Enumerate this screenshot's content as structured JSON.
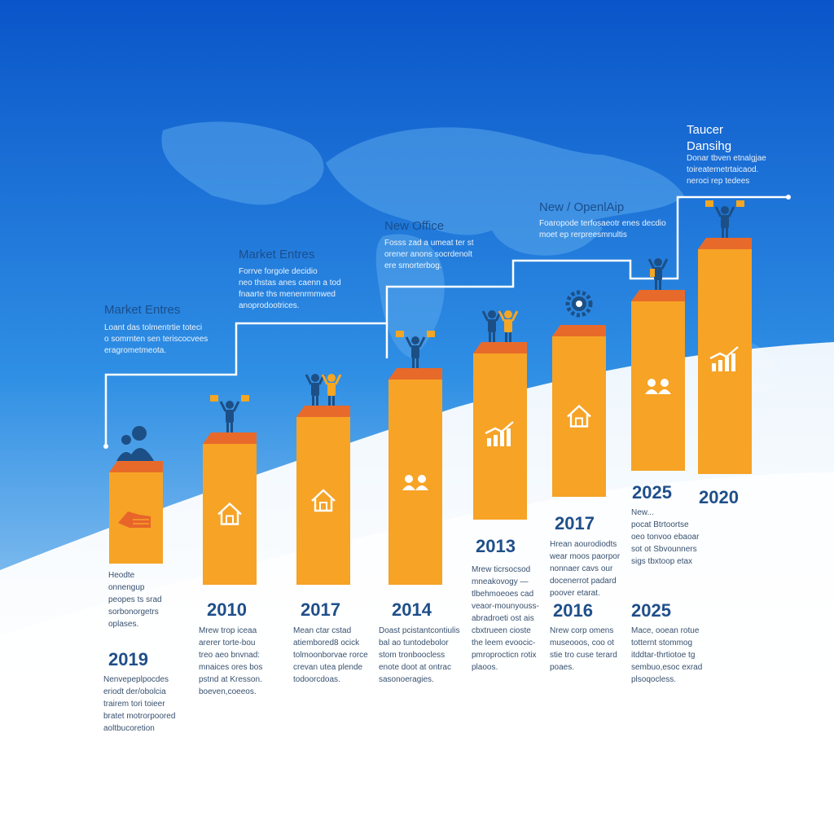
{
  "colors": {
    "sky_top": "#0a55c9",
    "sky_mid": "#2f8fe4",
    "map": "#5aa8ec",
    "ground": "#f4f8fc",
    "pillar_front": "#f6a326",
    "pillar_top": "#e86a2b",
    "figure_dark": "#1c4f86",
    "figure_light": "#f5a623",
    "title_text": "#1a4e8c"
  },
  "callouts": [
    {
      "title": "Market Entres",
      "text": "Loant das tolmentrtie toteci\no somrnten sen teriscocvees\neragrometmeota."
    },
    {
      "title": "Market Entres",
      "text": "Forrve forgole decidio\nneo thstas anes caenn a tod\nfnaarte ths menenrmmwed\nanoprodootrices."
    },
    {
      "title": "New Office",
      "text": "Fosss zad a umeat ter st\norener anons socrdenolt\nere smorterbog."
    },
    {
      "title": "New / OpenlAip",
      "text": "Foaropode terfosaeotr enes decdio\nmoet ep rerpreesmnultis"
    },
    {
      "title": "Taucer\nDansihg",
      "text": "Donar tbven etnalgjae\ntoireatemetrtaicaod.\nneroci rep tedees"
    }
  ],
  "pillars": [
    {
      "icon": "handshake-icon",
      "figure": "group-figure",
      "label_year": "2019",
      "label_text": "Heodte\nonnengup\npeopes ts srad\nsorbonorgetrs\noplases.",
      "year": "2019",
      "desc": "Nenvepeplpocdes\neriodt der/obolcia\ntrairem tori toieer\nbratet motrorpoored\naoltbucoretion"
    },
    {
      "icon": "house-icon",
      "figure": "person-flag-figure",
      "year": "2010",
      "desc": "Mrew trop iceaa\narerer torte-bou\ntreo aeo bnvnad:\nmnaices ores bos\npstnd at Kresson.\nboeven,coeeos."
    },
    {
      "icon": "house-icon",
      "figure": "two-people-figure",
      "year": "2017",
      "desc": "Mean ctar cstad\natiembored8 ocick\ntolmoonborvae rorce\ncrevan utea plende\ntodoorcdoas."
    },
    {
      "icon": "people-icon",
      "figure": "person-flag-figure",
      "year": "2014",
      "desc": "Doast pcistantcontiulis\nbal ao tuntodebolor\nstom tronboocless\nenote doot at ontrac\nsasonoeragies."
    },
    {
      "icon": "growth-chart-icon",
      "figure": "two-people-figure",
      "year": "2013",
      "desc": "Mrew ticrsocsod\nmneakovogy —\ntlbehmoeoes cad\nveaor-mounyouss-\nabradroeti ost ais\ncbxtrueen cioste\nthe leem evoocic-\npmroprocticn rotix\nplaoos."
    },
    {
      "icon": "house-icon",
      "figure": "gear-figure",
      "year": "2017",
      "year_2": "2016",
      "desc_top": "Hrean aourodiodts\nwear moos paorpor\nnonnaer cavs our\ndocenerrot padard\npoover etarat.",
      "desc": "Nrew corp omens\nmuseooos, coo ot\nstie tro cuse terard\npoaes."
    },
    {
      "icon": "people-icon",
      "figure": "person-arms-figure",
      "year": "2025",
      "year_2": "2025",
      "desc_top": "New...\npocat Btrtoortse\noeo tonvoo ebaoar\nsot ot Sbvounners\nsigs tbxtoop etax",
      "desc": "Mace, ooean rotue\ntotternt stommog\nitddtar-thrtiotoe tg\nsembuo,esoc exrad\nplsoqocless."
    },
    {
      "icon": "growth-chart-icon",
      "figure": "person-flag-figure",
      "year": "2020"
    }
  ]
}
